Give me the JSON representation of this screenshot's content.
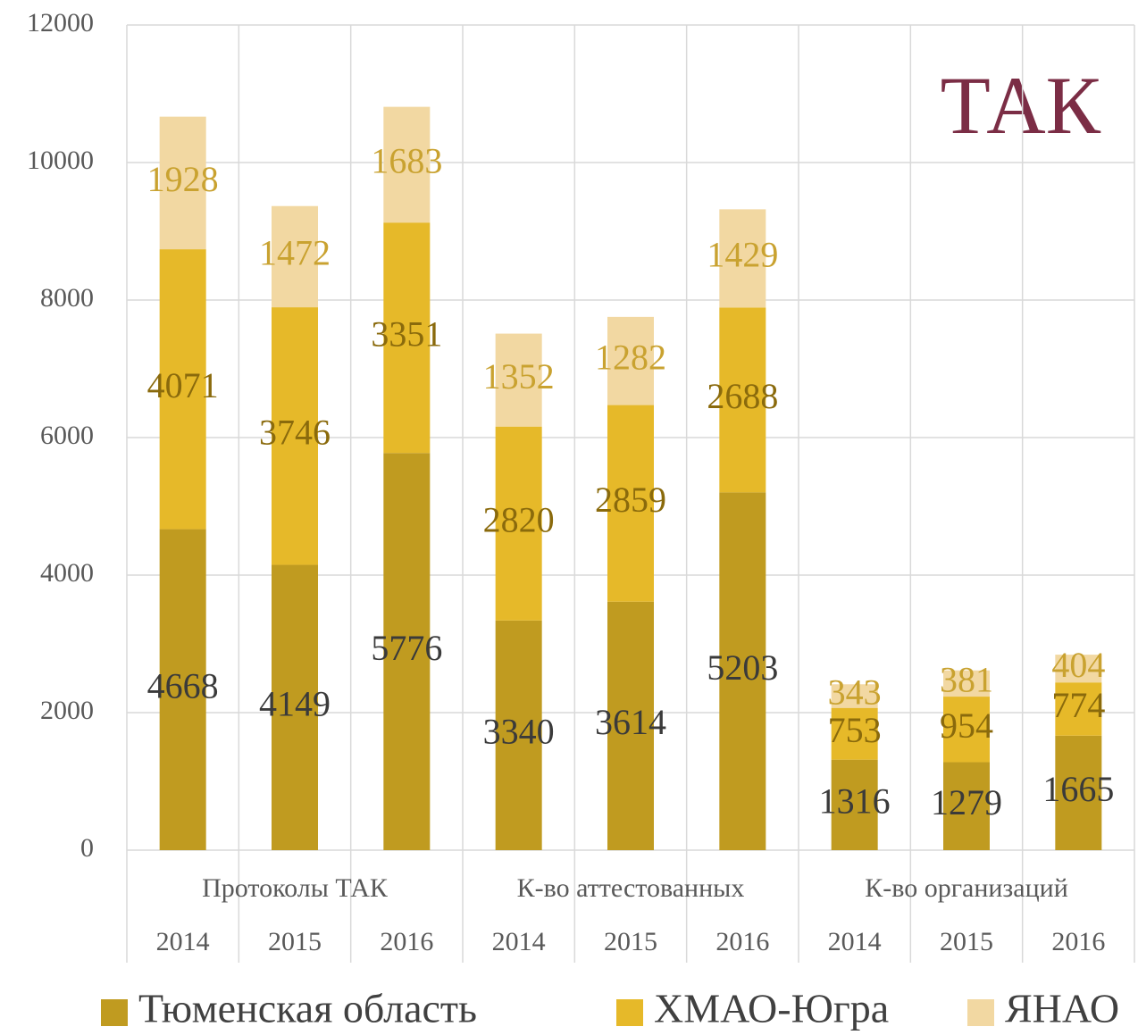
{
  "chart_data": {
    "type": "stacked_bar",
    "title": "ТАК",
    "groups": [
      "Протоколы ТАК",
      "К-во аттестованных",
      "К-во организаций"
    ],
    "categories": [
      "2014",
      "2015",
      "2016",
      "2014",
      "2015",
      "2016",
      "2014",
      "2015",
      "2016"
    ],
    "series": [
      {
        "name": "Тюменская область",
        "color": "#c09b20",
        "values": [
          4668,
          4149,
          5776,
          3340,
          3614,
          5203,
          1316,
          1279,
          1665
        ]
      },
      {
        "name": "ХМАО-Югра",
        "color": "#e6b929",
        "values": [
          4071,
          3746,
          3351,
          2820,
          2859,
          2688,
          753,
          954,
          774
        ]
      },
      {
        "name": "ЯНАО",
        "color": "#f2d8a2",
        "values": [
          1928,
          1472,
          1683,
          1352,
          1282,
          1429,
          343,
          381,
          404
        ]
      }
    ],
    "ylim": [
      0,
      12000
    ],
    "yticks": [
      0,
      2000,
      4000,
      6000,
      8000,
      10000,
      12000
    ],
    "grid": true,
    "legend": "bottom"
  }
}
